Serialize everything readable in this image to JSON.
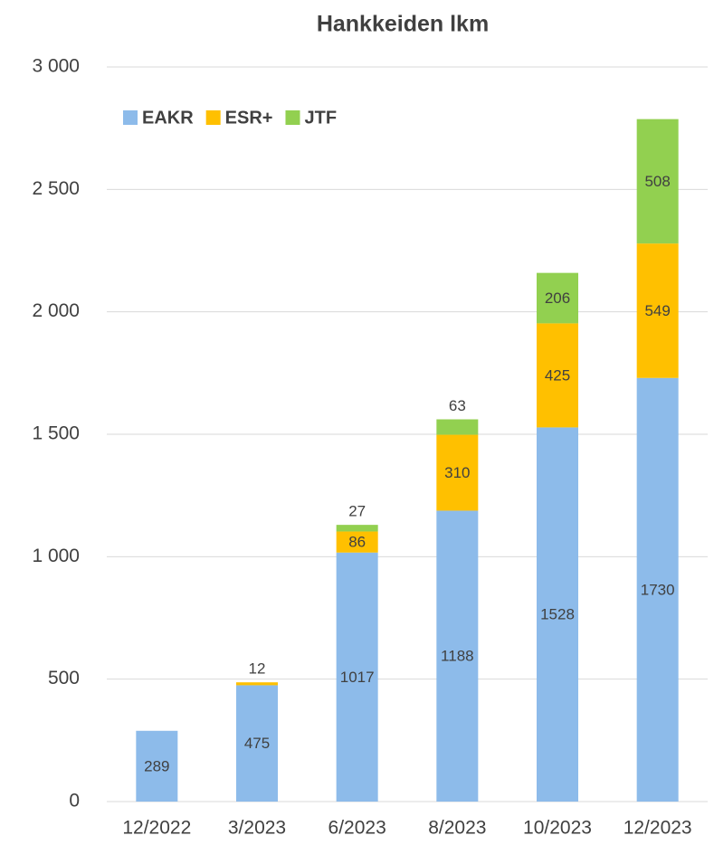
{
  "chart_data": {
    "type": "stacked-bar",
    "title": "Hankkeiden lkm",
    "categories": [
      "12/2022",
      "3/2023",
      "6/2023",
      "8/2023",
      "10/2023",
      "12/2023"
    ],
    "series": [
      {
        "name": "EAKR",
        "color": "#8dbbea",
        "values": [
          289,
          475,
          1017,
          1188,
          1528,
          1730
        ]
      },
      {
        "name": "ESR+",
        "color": "#ffc000",
        "values": [
          null,
          12,
          86,
          310,
          425,
          549
        ]
      },
      {
        "name": "JTF",
        "color": "#92d050",
        "values": [
          null,
          null,
          27,
          63,
          206,
          508
        ]
      }
    ],
    "ylim": [
      0,
      3000
    ],
    "yticks": [
      0,
      500,
      {
        "value": 1000,
        "label": "1 000"
      },
      {
        "value": 1500,
        "label": "1 500"
      },
      {
        "value": 2000,
        "label": "2 000"
      },
      {
        "value": 2500,
        "label": "2 500"
      },
      {
        "value": 3000,
        "label": "3 000"
      }
    ],
    "grid": true,
    "legend": "top-left"
  }
}
